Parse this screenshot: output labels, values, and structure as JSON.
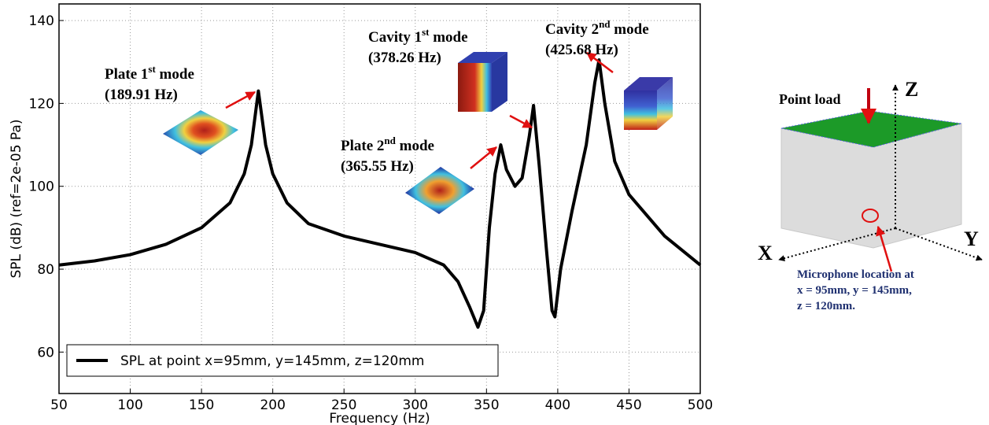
{
  "chart_data": {
    "type": "line",
    "xlabel": "Frequency (Hz)",
    "ylabel": "SPL (dB) (ref=2e-05 Pa)",
    "x": [
      50,
      75,
      100,
      125,
      150,
      170,
      180,
      185,
      189.91,
      195,
      200,
      210,
      225,
      250,
      275,
      300,
      320,
      330,
      338,
      344,
      348,
      352,
      356,
      360,
      364,
      370,
      375,
      380,
      383,
      387,
      392,
      396,
      398,
      402,
      410,
      420,
      426,
      429,
      433,
      440,
      450,
      475,
      500
    ],
    "series": [
      {
        "name": "SPL at point x=95mm, y=145mm, z=120mm",
        "color": "#000000",
        "values": [
          81,
          82,
          83.5,
          86,
          90,
          96,
          103,
          110,
          123,
          110,
          103,
          96,
          91,
          88,
          86,
          84,
          81,
          77,
          71,
          66,
          70,
          90,
          103,
          110,
          104,
          100,
          102,
          112,
          119.5,
          105,
          85,
          70,
          68.5,
          80,
          94,
          110,
          125,
          130.5,
          120,
          106,
          98,
          88,
          81
        ]
      }
    ],
    "xlim": [
      50,
      500
    ],
    "xticks": [
      50,
      100,
      150,
      200,
      250,
      300,
      350,
      400,
      450,
      500
    ],
    "ylim": [
      50,
      144
    ],
    "yticks": [
      60,
      80,
      100,
      120,
      140
    ],
    "grid": true,
    "legend": "lower left",
    "annotations": [
      {
        "label": [
          "Plate 1",
          "st",
          " mode"
        ],
        "freq": "(189.91 Hz)"
      },
      {
        "label": [
          "Plate 2",
          "nd",
          " mode"
        ],
        "freq": "(365.55 Hz)"
      },
      {
        "label": [
          "Cavity 1",
          "st",
          " mode"
        ],
        "freq": "(378.26 Hz)"
      },
      {
        "label": [
          "Cavity 2",
          "nd",
          " mode"
        ],
        "freq": "(425.68 Hz)"
      }
    ]
  },
  "diagram": {
    "load": "Point load",
    "axes": [
      "X",
      "Y",
      "Z"
    ],
    "mic": [
      "Microphone location at",
      "x = 95mm, y = 145mm,",
      "z = 120mm."
    ]
  }
}
